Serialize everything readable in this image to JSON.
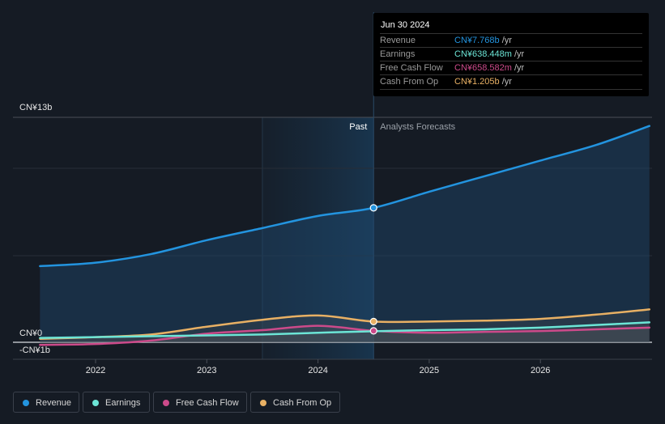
{
  "chart_data": {
    "type": "line",
    "title": "",
    "xlabel": "",
    "ylabel": "",
    "x_ticks": [
      "2022",
      "2023",
      "2024",
      "2025",
      "2026"
    ],
    "y_labels": [
      "CN¥13b",
      "CN¥0",
      "-CN¥1b"
    ],
    "ylim": [
      -1,
      13
    ],
    "xlim": [
      2021.5,
      2026.98
    ],
    "past_label": "Past",
    "forecast_label": "Analysts Forecasts",
    "divider_x": 2024.5,
    "past_shade_start": 2023.5,
    "x": [
      2021.5,
      2022.0,
      2022.5,
      2023.0,
      2023.5,
      2024.0,
      2024.5,
      2025.0,
      2025.5,
      2026.0,
      2026.5,
      2026.98
    ],
    "series": [
      {
        "name": "Revenue",
        "color": "#2394df",
        "values": [
          4.4,
          4.6,
          5.1,
          5.9,
          6.6,
          7.3,
          7.77,
          8.7,
          9.6,
          10.5,
          11.4,
          12.5
        ]
      },
      {
        "name": "Earnings",
        "color": "#6ce5d6",
        "values": [
          0.25,
          0.3,
          0.35,
          0.4,
          0.45,
          0.55,
          0.64,
          0.7,
          0.75,
          0.85,
          1.0,
          1.15
        ]
      },
      {
        "name": "Free Cash Flow",
        "color": "#cc4a8a",
        "values": [
          -0.15,
          -0.1,
          0.1,
          0.5,
          0.7,
          0.95,
          0.66,
          0.55,
          0.6,
          0.65,
          0.75,
          0.85
        ]
      },
      {
        "name": "Cash From Op",
        "color": "#e8b064",
        "values": [
          0.2,
          0.3,
          0.45,
          0.9,
          1.3,
          1.55,
          1.2,
          1.2,
          1.25,
          1.35,
          1.6,
          1.9
        ]
      }
    ],
    "grid": true,
    "legend_position": "bottom-left"
  },
  "tooltip": {
    "date": "Jun 30 2024",
    "rows": [
      {
        "label": "Revenue",
        "value": "CN¥7.768b",
        "unit": " /yr",
        "color": "#2394df"
      },
      {
        "label": "Earnings",
        "value": "CN¥638.448m",
        "unit": " /yr",
        "color": "#6ce5d6"
      },
      {
        "label": "Free Cash Flow",
        "value": "CN¥658.582m",
        "unit": " /yr",
        "color": "#cc4a8a"
      },
      {
        "label": "Cash From Op",
        "value": "CN¥1.205b",
        "unit": " /yr",
        "color": "#e8b064"
      }
    ]
  },
  "legend": [
    {
      "label": "Revenue",
      "color": "#2394df"
    },
    {
      "label": "Earnings",
      "color": "#6ce5d6"
    },
    {
      "label": "Free Cash Flow",
      "color": "#cc4a8a"
    },
    {
      "label": "Cash From Op",
      "color": "#e8b064"
    }
  ]
}
